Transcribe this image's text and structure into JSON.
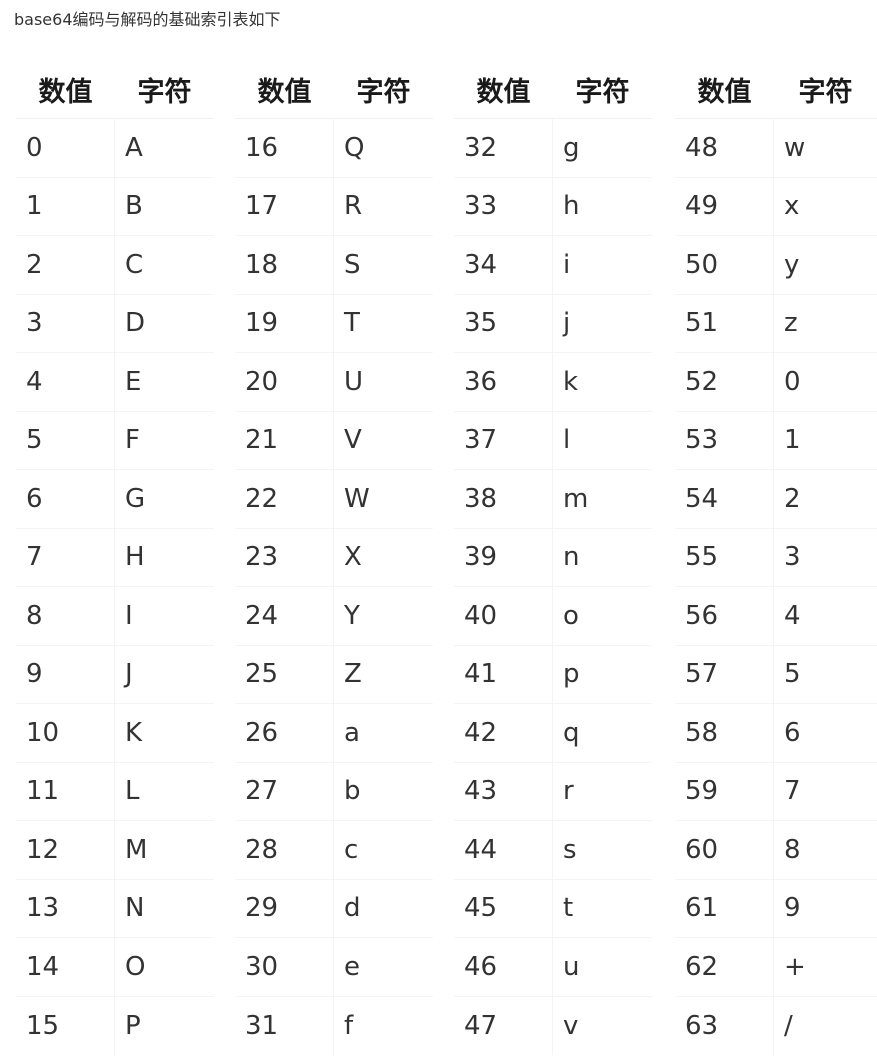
{
  "caption": "base64编码与解码的基础索引表如下",
  "headers": {
    "value": "数值",
    "char": "字符"
  },
  "columns": [
    {
      "rows": [
        {
          "v": "0",
          "c": "A"
        },
        {
          "v": "1",
          "c": "B"
        },
        {
          "v": "2",
          "c": "C"
        },
        {
          "v": "3",
          "c": "D"
        },
        {
          "v": "4",
          "c": "E"
        },
        {
          "v": "5",
          "c": "F"
        },
        {
          "v": "6",
          "c": "G"
        },
        {
          "v": "7",
          "c": "H"
        },
        {
          "v": "8",
          "c": "I"
        },
        {
          "v": "9",
          "c": "J"
        },
        {
          "v": "10",
          "c": "K"
        },
        {
          "v": "11",
          "c": "L"
        },
        {
          "v": "12",
          "c": "M"
        },
        {
          "v": "13",
          "c": "N"
        },
        {
          "v": "14",
          "c": "O"
        },
        {
          "v": "15",
          "c": "P"
        }
      ]
    },
    {
      "rows": [
        {
          "v": "16",
          "c": "Q"
        },
        {
          "v": "17",
          "c": "R"
        },
        {
          "v": "18",
          "c": "S"
        },
        {
          "v": "19",
          "c": "T"
        },
        {
          "v": "20",
          "c": "U"
        },
        {
          "v": "21",
          "c": "V"
        },
        {
          "v": "22",
          "c": "W"
        },
        {
          "v": "23",
          "c": "X"
        },
        {
          "v": "24",
          "c": "Y"
        },
        {
          "v": "25",
          "c": "Z"
        },
        {
          "v": "26",
          "c": "a"
        },
        {
          "v": "27",
          "c": "b"
        },
        {
          "v": "28",
          "c": "c"
        },
        {
          "v": "29",
          "c": "d"
        },
        {
          "v": "30",
          "c": "e"
        },
        {
          "v": "31",
          "c": "f"
        }
      ]
    },
    {
      "rows": [
        {
          "v": "32",
          "c": "g"
        },
        {
          "v": "33",
          "c": "h"
        },
        {
          "v": "34",
          "c": "i"
        },
        {
          "v": "35",
          "c": "j"
        },
        {
          "v": "36",
          "c": "k"
        },
        {
          "v": "37",
          "c": "l"
        },
        {
          "v": "38",
          "c": "m"
        },
        {
          "v": "39",
          "c": "n"
        },
        {
          "v": "40",
          "c": "o"
        },
        {
          "v": "41",
          "c": "p"
        },
        {
          "v": "42",
          "c": "q"
        },
        {
          "v": "43",
          "c": "r"
        },
        {
          "v": "44",
          "c": "s"
        },
        {
          "v": "45",
          "c": "t"
        },
        {
          "v": "46",
          "c": "u"
        },
        {
          "v": "47",
          "c": "v"
        }
      ]
    },
    {
      "rows": [
        {
          "v": "48",
          "c": "w"
        },
        {
          "v": "49",
          "c": "x"
        },
        {
          "v": "50",
          "c": "y"
        },
        {
          "v": "51",
          "c": "z"
        },
        {
          "v": "52",
          "c": "0"
        },
        {
          "v": "53",
          "c": "1"
        },
        {
          "v": "54",
          "c": "2"
        },
        {
          "v": "55",
          "c": "3"
        },
        {
          "v": "56",
          "c": "4"
        },
        {
          "v": "57",
          "c": "5"
        },
        {
          "v": "58",
          "c": "6"
        },
        {
          "v": "59",
          "c": "7"
        },
        {
          "v": "60",
          "c": "8"
        },
        {
          "v": "61",
          "c": "9"
        },
        {
          "v": "62",
          "c": "+"
        },
        {
          "v": "63",
          "c": "/"
        }
      ]
    }
  ]
}
